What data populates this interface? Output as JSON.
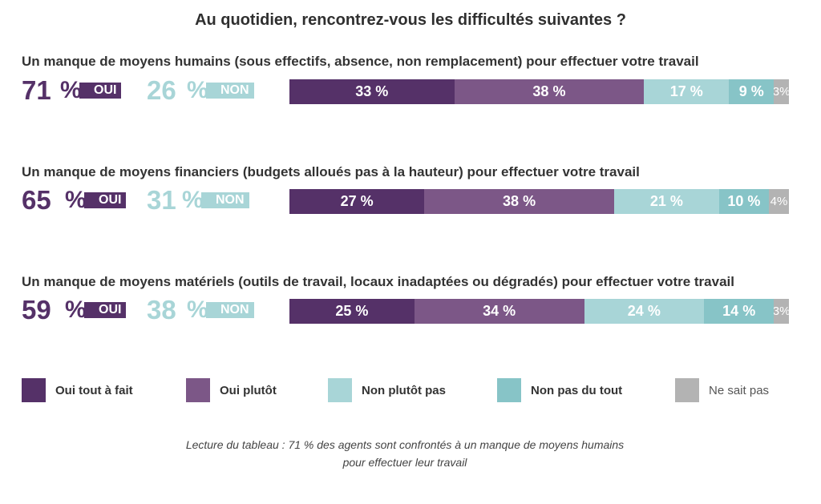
{
  "title": "Au quotidien, rencontrez-vous les difficultés suivantes ?",
  "colors": {
    "oui_tout_a_fait": "#553168",
    "oui_plutot": "#7c5787",
    "non_plutot_pas": "#a8d5d7",
    "non_pas_du_tout": "#87c4c7",
    "ne_sait_pas": "#b3b3b3"
  },
  "legend": [
    {
      "label": "Oui tout à fait",
      "color": "#553168"
    },
    {
      "label": "Oui plutôt",
      "color": "#7c5787"
    },
    {
      "label": "Non plutôt pas",
      "color": "#a8d5d7"
    },
    {
      "label": "Non pas du tout",
      "color": "#87c4c7"
    },
    {
      "label": "Ne sait pas",
      "color": "#b3b3b3"
    }
  ],
  "rows": [
    {
      "question": "Un manque de moyens humains (sous effectifs, absence, non remplacement) pour effectuer votre travail",
      "oui_value": "71",
      "oui_pct": "%",
      "oui_label": "OUI",
      "non_value": "26",
      "non_pct": "%",
      "non_label": "NON",
      "labels": [
        "33 %",
        "38 %",
        "17 %",
        "9 %",
        "3%"
      ]
    },
    {
      "question": "Un manque de moyens financiers (budgets alloués pas à la hauteur) pour effectuer votre travail",
      "oui_value": "65",
      "oui_pct": "%",
      "oui_label": "OUI",
      "non_value": "31",
      "non_pct": "%",
      "non_label": "NON",
      "labels": [
        "27 %",
        "38 %",
        "21 %",
        "10 %",
        "4%"
      ]
    },
    {
      "question": "Un manque de moyens matériels (outils de travail, locaux inadaptées ou dégradés) pour effectuer votre travail",
      "oui_value": "59",
      "oui_pct": "%",
      "oui_label": "OUI",
      "non_value": "38",
      "non_pct": "%",
      "non_label": "NON",
      "labels": [
        "25 %",
        "34 %",
        "24 %",
        "14 %",
        "3%"
      ]
    }
  ],
  "chart_data": {
    "type": "bar",
    "orientation": "horizontal-stacked",
    "title": "Au quotidien, rencontrez-vous les difficultés suivantes ?",
    "categories": [
      "Un manque de moyens humains (sous effectifs, absence, non remplacement) pour effectuer votre travail",
      "Un manque de moyens financiers (budgets alloués pas à la hauteur) pour effectuer votre travail",
      "Un manque de moyens matériels (outils de travail, locaux inadaptées ou dégradés) pour effectuer votre travail"
    ],
    "series": [
      {
        "name": "Oui tout à fait",
        "values": [
          33,
          27,
          25
        ]
      },
      {
        "name": "Oui plutôt",
        "values": [
          38,
          38,
          34
        ]
      },
      {
        "name": "Non plutôt pas",
        "values": [
          17,
          21,
          24
        ]
      },
      {
        "name": "Non pas du tout",
        "values": [
          9,
          10,
          14
        ]
      },
      {
        "name": "Ne sait pas",
        "values": [
          3,
          4,
          3
        ]
      }
    ],
    "totals": {
      "oui": [
        71,
        65,
        59
      ],
      "non": [
        26,
        31,
        38
      ]
    },
    "legend_position": "bottom"
  },
  "note": {
    "line1": "Lecture du tableau : 71 % des agents sont confrontés à un manque de moyens humains",
    "line2": "pour effectuer leur travail"
  }
}
